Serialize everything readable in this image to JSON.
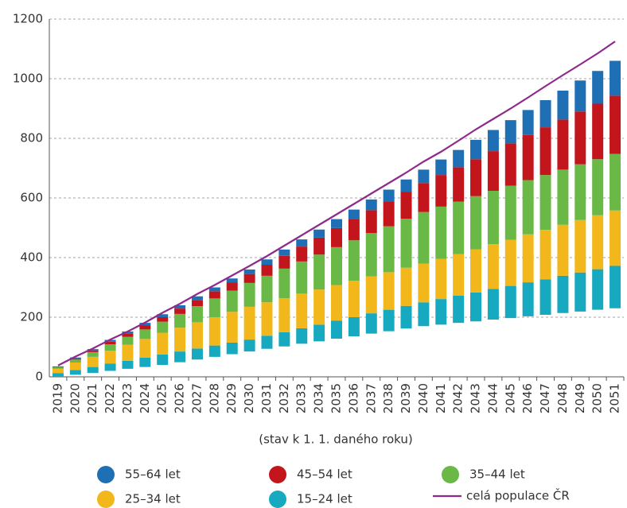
{
  "chart_data": {
    "type": "stacked_bar_line",
    "x_label": "(stav k 1. 1. daného roku)",
    "categories": [
      "2019",
      "2020",
      "2021",
      "2022",
      "2023",
      "2024",
      "2025",
      "2026",
      "2027",
      "2028",
      "2029",
      "2030",
      "2031",
      "2032",
      "2033",
      "2034",
      "2035",
      "2036",
      "2037",
      "2038",
      "2039",
      "2040",
      "2041",
      "2042",
      "2043",
      "2044",
      "2045",
      "2046",
      "2047",
      "2048",
      "2049",
      "2050",
      "2051"
    ],
    "series": [
      {
        "color": "none",
        "values": [
          0,
          7,
          13,
          20,
          27,
          33,
          40,
          49,
          58,
          67,
          76,
          85,
          94,
          102,
          111,
          119,
          128,
          136,
          145,
          153,
          162,
          170,
          175,
          181,
          186,
          192,
          197,
          203,
          208,
          214,
          219,
          225,
          230
        ]
      },
      {
        "name": "15–24 let",
        "color": "#16a9c0",
        "values": [
          12,
          16,
          20,
          24,
          27,
          31,
          35,
          36,
          37,
          38,
          39,
          40,
          44,
          48,
          52,
          56,
          60,
          64,
          68,
          72,
          76,
          80,
          86,
          91,
          97,
          103,
          108,
          114,
          119,
          125,
          131,
          136,
          142
        ]
      },
      {
        "name": "25–34 let",
        "color": "#f2b71b",
        "values": [
          15,
          25,
          34,
          44,
          54,
          63,
          73,
          80,
          88,
          95,
          103,
          110,
          112,
          114,
          116,
          118,
          120,
          122,
          124,
          126,
          128,
          130,
          135,
          140,
          145,
          150,
          155,
          161,
          166,
          171,
          176,
          181,
          186
        ]
      },
      {
        "name": "35–44 let",
        "color": "#6ab845",
        "values": [
          5,
          10,
          16,
          21,
          26,
          32,
          37,
          46,
          54,
          63,
          71,
          80,
          89,
          99,
          108,
          117,
          127,
          136,
          145,
          154,
          164,
          173,
          175,
          176,
          178,
          179,
          181,
          182,
          184,
          185,
          187,
          188,
          190
        ]
      },
      {
        "name": "45–54 let",
        "color": "#c3161c",
        "values": [
          2,
          4,
          6,
          9,
          11,
          13,
          15,
          18,
          21,
          24,
          27,
          30,
          37,
          43,
          50,
          57,
          64,
          70,
          77,
          84,
          90,
          97,
          106,
          115,
          124,
          133,
          142,
          151,
          160,
          168,
          177,
          186,
          195
        ]
      },
      {
        "name": "55–64 let",
        "color": "#1f6fb5",
        "values": [
          1,
          3,
          4,
          6,
          7,
          9,
          10,
          11,
          12,
          13,
          14,
          15,
          18,
          21,
          24,
          27,
          30,
          33,
          36,
          39,
          42,
          45,
          52,
          58,
          65,
          71,
          78,
          84,
          91,
          97,
          104,
          110,
          117
        ]
      }
    ],
    "line": {
      "name": "celá populace ČR",
      "color": "#8e2a8b",
      "values": [
        38,
        68,
        95,
        125,
        152,
        182,
        215,
        245,
        278,
        308,
        340,
        372,
        405,
        440,
        475,
        510,
        545,
        580,
        615,
        650,
        685,
        722,
        755,
        792,
        830,
        865,
        900,
        937,
        975,
        1012,
        1048,
        1085,
        1125
      ]
    },
    "ylim": [
      0,
      1200
    ],
    "yticks": [
      0,
      200,
      400,
      600,
      800,
      1000,
      1200
    ],
    "grid": true
  }
}
